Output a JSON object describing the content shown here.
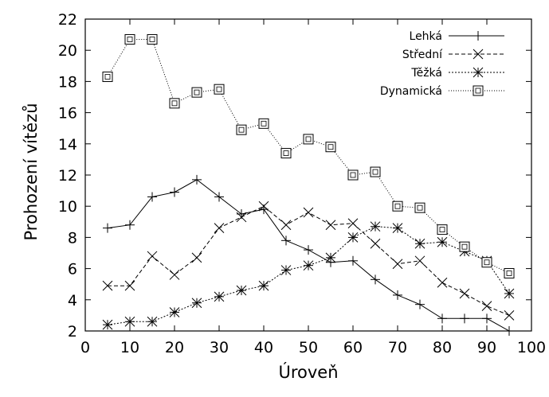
{
  "chart_data": {
    "type": "line",
    "xlabel": "Úroveň",
    "ylabel": "Prohození vítězů",
    "xlim": [
      0,
      100
    ],
    "ylim": [
      2,
      22
    ],
    "xticks": [
      0,
      10,
      20,
      30,
      40,
      50,
      60,
      70,
      80,
      90,
      100
    ],
    "yticks": [
      2,
      4,
      6,
      8,
      10,
      12,
      14,
      16,
      18,
      20,
      22
    ],
    "grid": false,
    "legend_position": "top-right",
    "x": [
      5,
      10,
      15,
      20,
      25,
      30,
      35,
      40,
      45,
      50,
      55,
      60,
      65,
      70,
      75,
      80,
      85,
      90,
      95
    ],
    "series": [
      {
        "name": "Lehká",
        "marker": "plus",
        "line": "solid",
        "values": [
          8.6,
          8.8,
          10.6,
          10.9,
          11.7,
          10.6,
          9.5,
          9.8,
          7.8,
          7.2,
          6.4,
          6.5,
          5.3,
          4.3,
          3.7,
          2.8,
          2.8,
          2.8,
          2.0
        ]
      },
      {
        "name": "Střední",
        "marker": "x",
        "line": "dashed",
        "values": [
          4.9,
          4.9,
          6.8,
          5.6,
          6.7,
          8.6,
          9.3,
          10.0,
          8.8,
          9.6,
          8.8,
          8.9,
          7.6,
          6.3,
          6.5,
          5.1,
          4.4,
          3.6,
          3.0
        ]
      },
      {
        "name": "Těžká",
        "marker": "star",
        "line": "densely-dotted",
        "values": [
          2.4,
          2.6,
          2.6,
          3.2,
          3.8,
          4.2,
          4.6,
          4.9,
          5.9,
          6.2,
          6.7,
          8.0,
          8.7,
          8.6,
          7.6,
          7.7,
          7.1,
          6.5,
          4.4
        ]
      },
      {
        "name": "Dynamická",
        "marker": "square",
        "line": "dotted",
        "values": [
          18.3,
          20.7,
          20.7,
          16.6,
          17.3,
          17.5,
          14.9,
          15.3,
          13.4,
          14.3,
          13.8,
          12.0,
          12.2,
          10.0,
          9.9,
          8.5,
          7.4,
          6.4,
          5.7
        ]
      }
    ]
  }
}
